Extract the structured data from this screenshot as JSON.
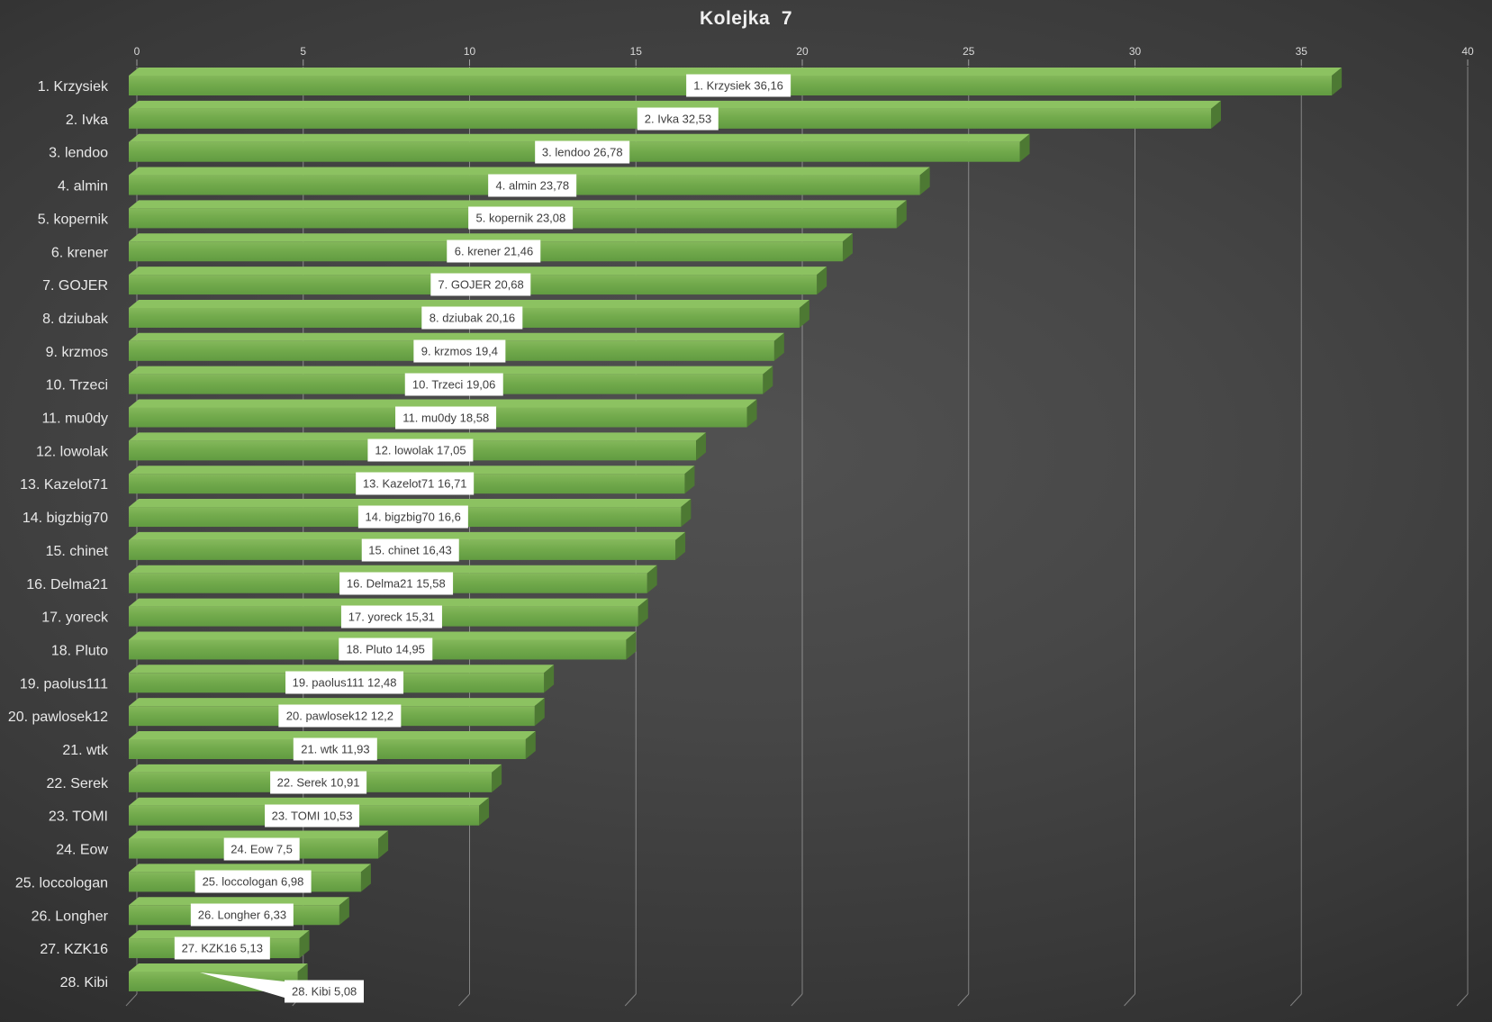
{
  "title": "Kolejka  7",
  "colors": {
    "bar_front": "#72aa4c",
    "bar_front_light": "#84b85b",
    "bar_front_dark": "#619b41",
    "bar_top_face": "#8cc261",
    "bar_end_face": "#4d7933",
    "background_center": "#4f4f4f",
    "background_edge": "#1a1a1a",
    "gridline": "#ffffff",
    "axis_text": "#d9d9d9",
    "category_text": "#e8e8e8",
    "data_label_bg": "#ffffff",
    "data_label_text": "#3d3d3d",
    "title_text": "#f0f0f0"
  },
  "chart_data": {
    "type": "bar",
    "orientation": "horizontal",
    "style": "3d",
    "title": "Kolejka  7",
    "xlabel": "",
    "ylabel": "",
    "xlim": [
      0,
      40
    ],
    "x_ticks": [
      0,
      5,
      10,
      15,
      20,
      25,
      30,
      35,
      40
    ],
    "grid": true,
    "legend": false,
    "decimal_separator": ",",
    "categories": [
      "1. Krzysiek",
      "2. Ivka",
      "3. lendoo",
      "4. almin",
      "5. kopernik",
      "6. krener",
      "7. GOJER",
      "8. dziubak",
      "9. krzmos",
      "10. Trzeci",
      "11. mu0dy",
      "12. lowolak",
      "13. Kazelot71",
      "14. bigzbig70",
      "15. chinet",
      "16. Delma21",
      "17. yoreck",
      "18. Pluto",
      "19. paolus111",
      "20. pawlosek12",
      "21. wtk",
      "22. Serek",
      "23. TOMI",
      "24. Eow",
      "25. loccologan",
      "26. Longher",
      "27. KZK16",
      "28. Kibi"
    ],
    "values": [
      36.16,
      32.53,
      26.78,
      23.78,
      23.08,
      21.46,
      20.68,
      20.16,
      19.4,
      19.06,
      18.58,
      17.05,
      16.71,
      16.6,
      16.43,
      15.58,
      15.31,
      14.95,
      12.48,
      12.2,
      11.93,
      10.91,
      10.53,
      7.5,
      6.98,
      6.33,
      5.13,
      5.08
    ],
    "data_labels": [
      "1. Krzysiek 36,16",
      "2. Ivka 32,53",
      "3. lendoo 26,78",
      "4. almin 23,78",
      "5. kopernik 23,08",
      "6. krener 21,46",
      "7. GOJER 20,68",
      "8. dziubak 20,16",
      "9. krzmos 19,4",
      "10. Trzeci 19,06",
      "11. mu0dy 18,58",
      "12. lowolak 17,05",
      "13. Kazelot71 16,71",
      "14. bigzbig70 16,6",
      "15. chinet 16,43",
      "16. Delma21 15,58",
      "17. yoreck 15,31",
      "18. Pluto 14,95",
      "19. paolus111 12,48",
      "20. pawlosek12 12,2",
      "21. wtk 11,93",
      "22. Serek 10,91",
      "23. TOMI 10,53",
      "24. Eow 7,5",
      "25. loccologan 6,98",
      "26. Longher 6,33",
      "27. KZK16 5,13",
      "28. Kibi 5,08"
    ],
    "callout_labels": [
      "28. Kibi 5,08"
    ]
  }
}
